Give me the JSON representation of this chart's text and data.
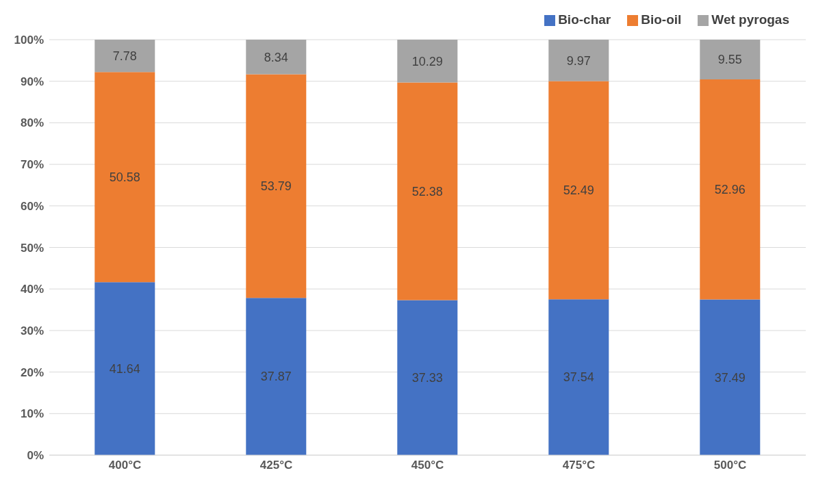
{
  "chart_data": {
    "type": "bar",
    "stacked": true,
    "categories": [
      "400°C",
      "425°C",
      "450°C",
      "475°C",
      "500°C"
    ],
    "series": [
      {
        "name": "Bio-char",
        "color": "#4472c4",
        "values": [
          41.64,
          37.87,
          37.33,
          37.54,
          37.49
        ]
      },
      {
        "name": "Bio-oil",
        "color": "#ed7d31",
        "values": [
          50.58,
          53.79,
          52.38,
          52.49,
          52.96
        ]
      },
      {
        "name": "Wet pyrogas",
        "color": "#a5a5a5",
        "values": [
          7.78,
          8.34,
          10.29,
          9.97,
          9.55
        ]
      }
    ],
    "ylim": [
      0,
      100
    ],
    "yticks": [
      {
        "value": 0,
        "label": "0%"
      },
      {
        "value": 10,
        "label": "10%"
      },
      {
        "value": 20,
        "label": "20%"
      },
      {
        "value": 30,
        "label": "30%"
      },
      {
        "value": 40,
        "label": "40%"
      },
      {
        "value": 50,
        "label": "50%"
      },
      {
        "value": 60,
        "label": "60%"
      },
      {
        "value": 70,
        "label": "70%"
      },
      {
        "value": 80,
        "label": "80%"
      },
      {
        "value": 90,
        "label": "90%"
      },
      {
        "value": 100,
        "label": "100%"
      }
    ],
    "grid": "y",
    "legend": "top right",
    "data_labels": true
  }
}
